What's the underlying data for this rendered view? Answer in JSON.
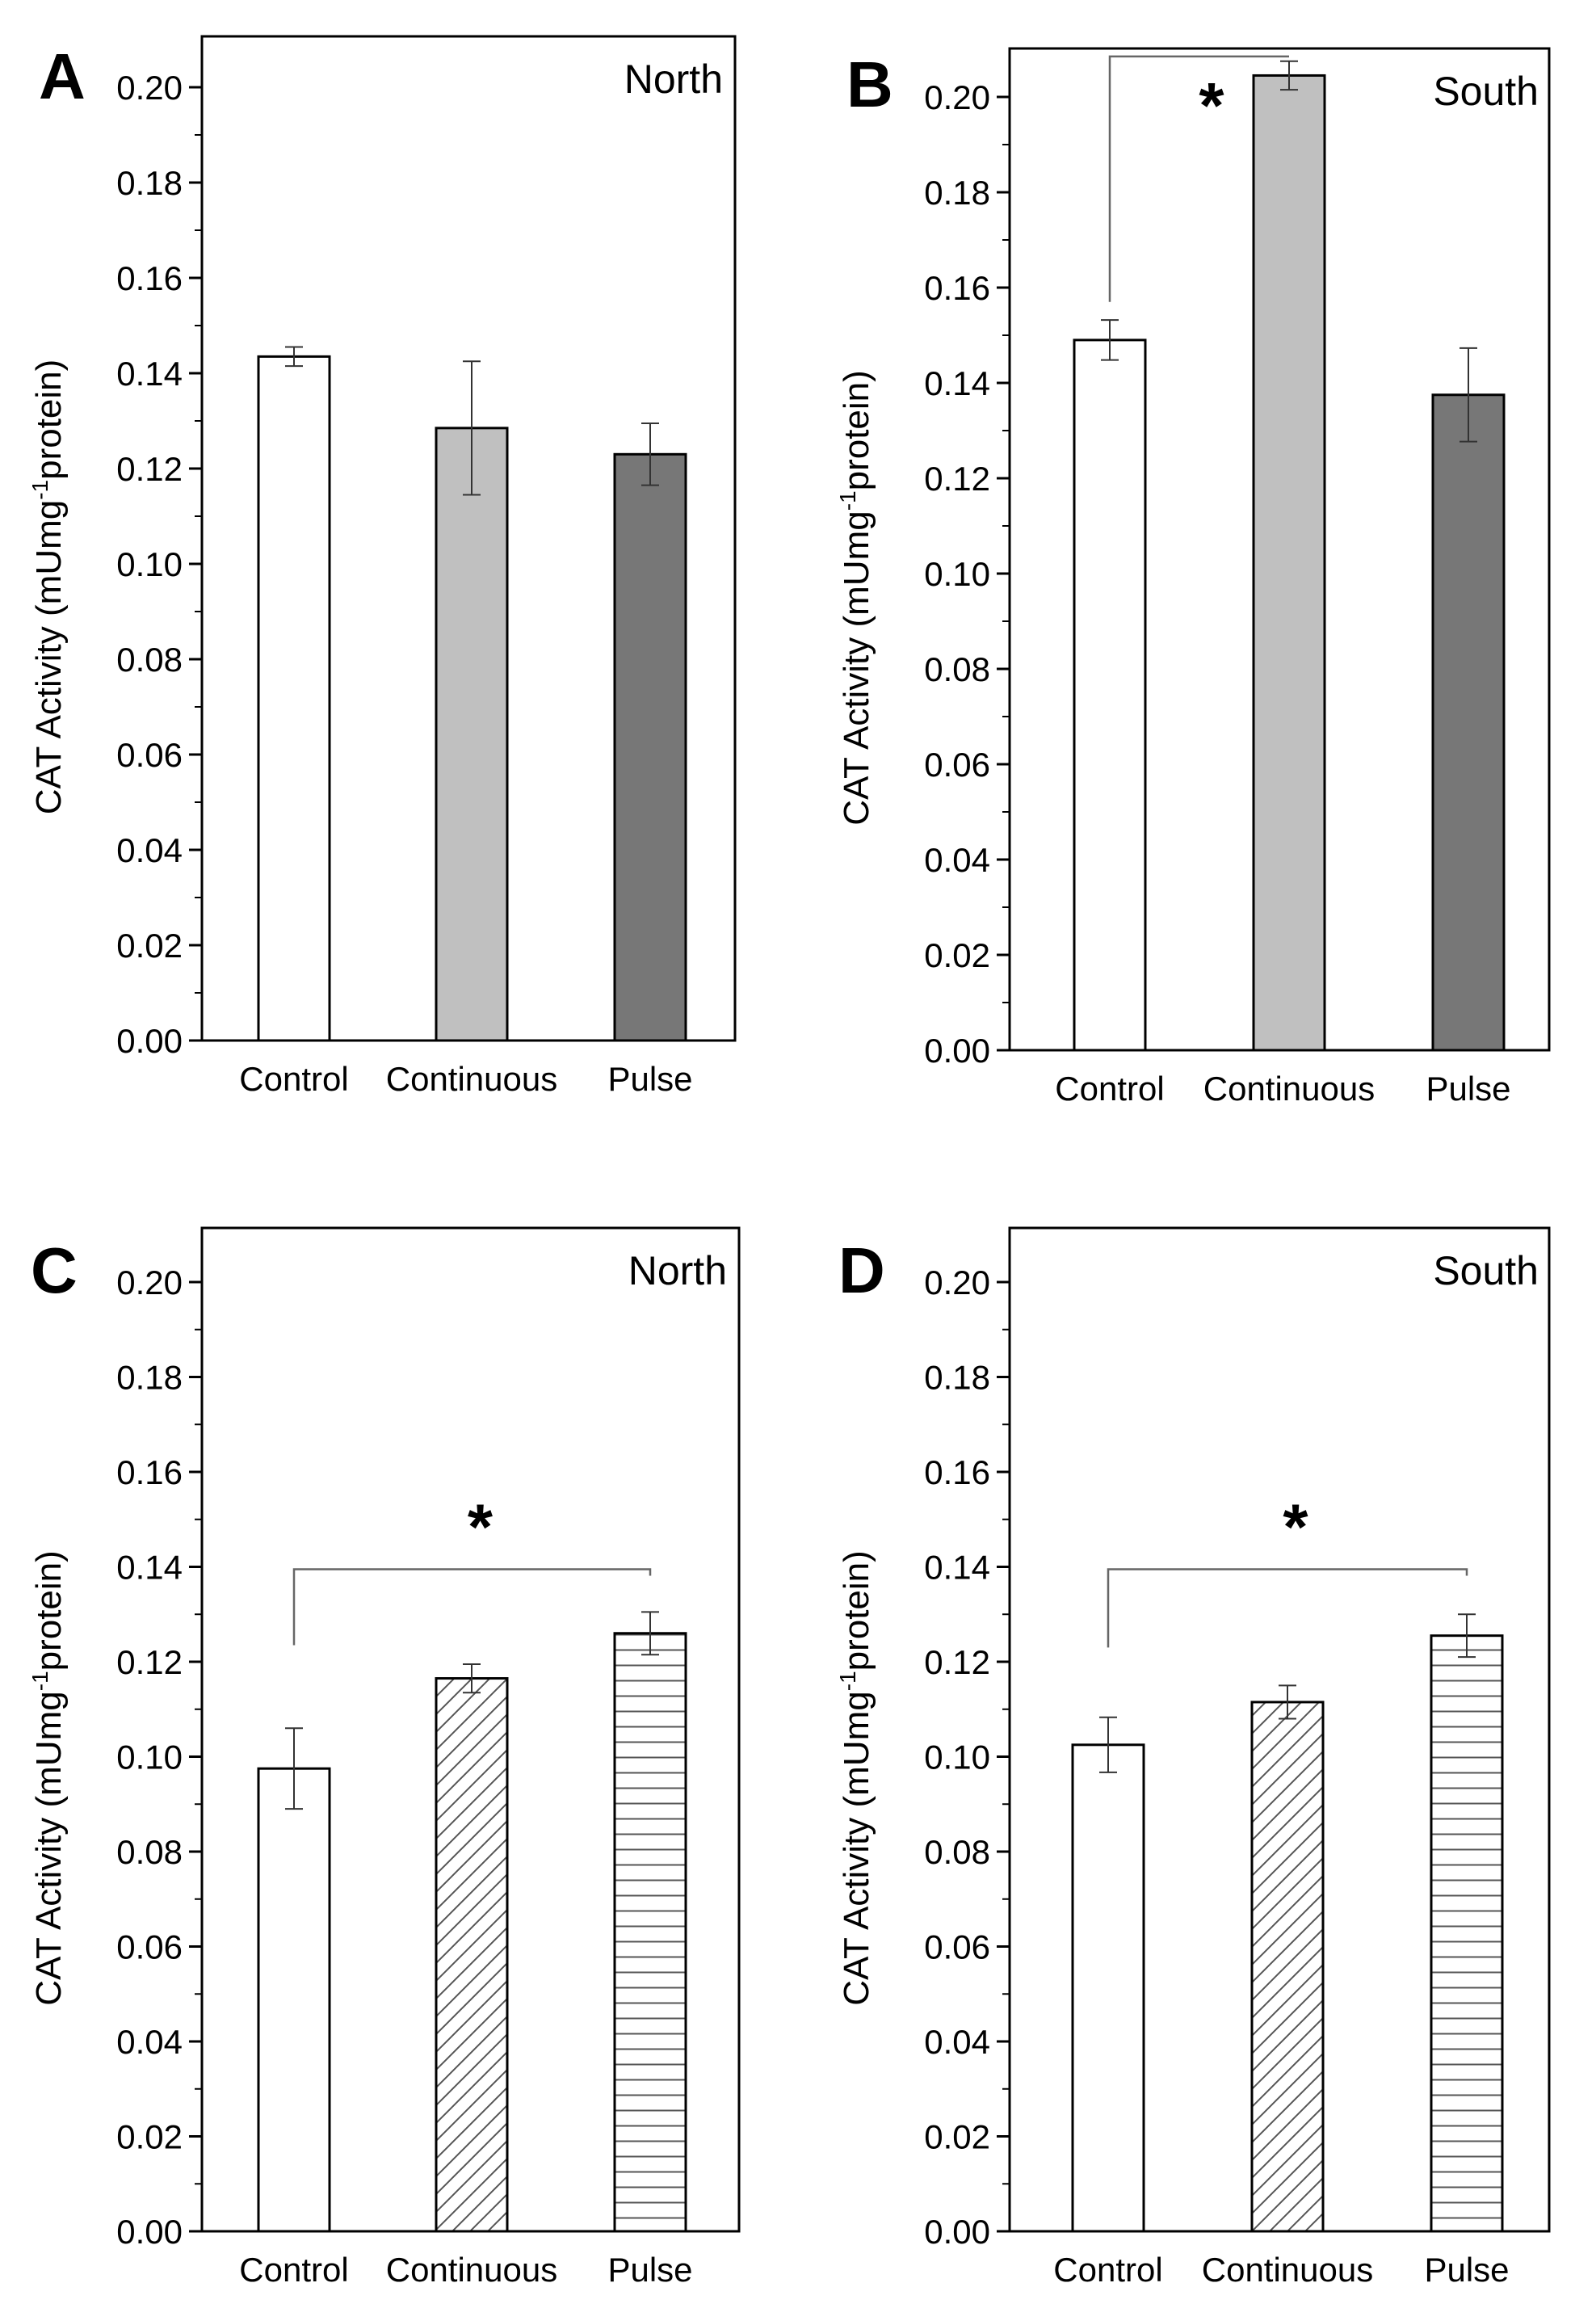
{
  "figure": {
    "y_axis_label": {
      "prefix": "CAT Activity (mUmg",
      "superscript": "-1",
      "suffix": "protein)"
    },
    "significance_marker": "*"
  },
  "chart_data": [
    {
      "type": "bar",
      "panel": "A",
      "region": "North",
      "categories": [
        "Control",
        "Continuous",
        "Pulse"
      ],
      "values": [
        0.1435,
        0.1285,
        0.123
      ],
      "errors": [
        0.002,
        0.014,
        0.0065
      ],
      "fills": [
        "#ffffff",
        "#c0c0c0",
        "#777777"
      ],
      "patterns": [
        "none",
        "none",
        "none"
      ],
      "ylim": [
        0,
        0.2
      ],
      "yticks": [
        "0.00",
        "0.02",
        "0.04",
        "0.06",
        "0.08",
        "0.10",
        "0.12",
        "0.14",
        "0.16",
        "0.18",
        "0.20"
      ],
      "ylabel": "CAT Activity (mUmg-1 protein)",
      "significance": {
        "from": 0,
        "to": 1,
        "level": 0.21,
        "stem_to": 0.153,
        "label": "*",
        "shown": false
      }
    },
    {
      "type": "bar",
      "panel": "B",
      "region": "South",
      "categories": [
        "Control",
        "Continuous",
        "Pulse"
      ],
      "values": [
        0.149,
        0.2045,
        0.1375
      ],
      "errors": [
        0.0042,
        0.003,
        0.0098
      ],
      "fills": [
        "#ffffff",
        "#c0c0c0",
        "#777777"
      ],
      "patterns": [
        "none",
        "none",
        "none"
      ],
      "ylim": [
        0,
        0.2
      ],
      "yticks": [
        "0.00",
        "0.02",
        "0.04",
        "0.06",
        "0.08",
        "0.10",
        "0.12",
        "0.14",
        "0.16",
        "0.18",
        "0.20"
      ],
      "ylabel": "CAT Activity (mUmg-1 protein)",
      "significance": {
        "from": 0,
        "to": 1,
        "level": 0.2085,
        "stem_to": 0.157,
        "label": "*",
        "shown": true
      }
    },
    {
      "type": "bar",
      "panel": "C",
      "region": "North",
      "categories": [
        "Control",
        "Continuous",
        "Pulse"
      ],
      "values": [
        0.0975,
        0.1165,
        0.126
      ],
      "errors": [
        0.0085,
        0.003,
        0.0045
      ],
      "fills": [
        "#ffffff",
        "#ffffff",
        "#ffffff"
      ],
      "patterns": [
        "none",
        "diagonal",
        "horizontal"
      ],
      "ylim": [
        0,
        0.2
      ],
      "yticks": [
        "0.00",
        "0.02",
        "0.04",
        "0.06",
        "0.08",
        "0.10",
        "0.12",
        "0.14",
        "0.16",
        "0.18",
        "0.20"
      ],
      "ylabel": "CAT Activity (mUmg-1 protein)",
      "significance": {
        "from": 0,
        "to": 2,
        "level": 0.1395,
        "stem_to": 0.1235,
        "label": "*",
        "shown": true
      }
    },
    {
      "type": "bar",
      "panel": "D",
      "region": "South",
      "categories": [
        "Control",
        "Continuous",
        "Pulse"
      ],
      "values": [
        0.1025,
        0.1115,
        0.1255
      ],
      "errors": [
        0.0058,
        0.0035,
        0.0045
      ],
      "fills": [
        "#ffffff",
        "#ffffff",
        "#ffffff"
      ],
      "patterns": [
        "none",
        "diagonal",
        "horizontal"
      ],
      "ylim": [
        0,
        0.2
      ],
      "yticks": [
        "0.00",
        "0.02",
        "0.04",
        "0.06",
        "0.08",
        "0.10",
        "0.12",
        "0.14",
        "0.16",
        "0.18",
        "0.20"
      ],
      "ylabel": "CAT Activity (mUmg-1 protein)",
      "significance": {
        "from": 0,
        "to": 2,
        "level": 0.1395,
        "stem_to": 0.123,
        "label": "*",
        "shown": true
      }
    }
  ]
}
